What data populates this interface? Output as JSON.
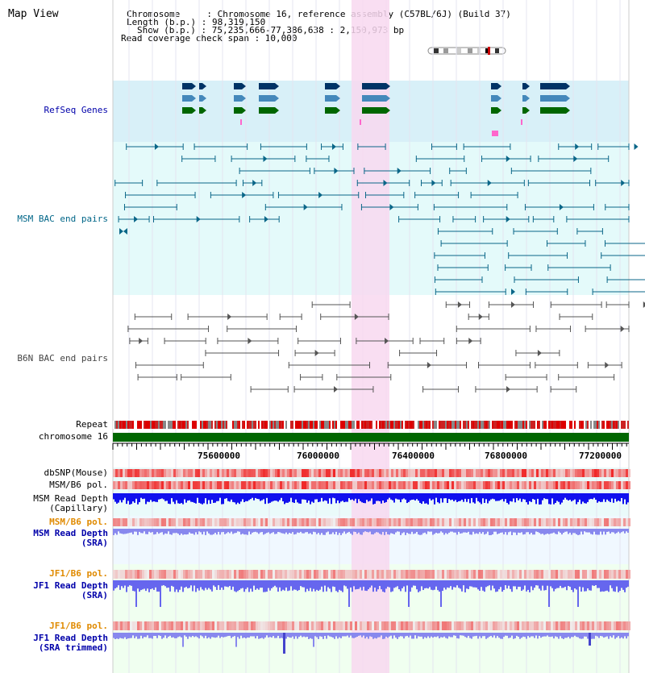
{
  "page": {
    "title": "Map View",
    "info_lines": [
      "Chromosome     : Chromosome 16, reference assembly (C57BL/6J) (Build 37)",
      "Length (b.p.) : 98,319,150",
      "Show (b.p.) : 75,235,666-77,386,638 : 2,150,973 bp",
      "Read coverage check span : 10,000"
    ]
  },
  "tracks": [
    {
      "id": "refseq",
      "label": "RefSeq Genes",
      "color": "#0000aa"
    },
    {
      "id": "msm_bac",
      "label": "MSM BAC end pairs",
      "color": "#006688"
    },
    {
      "id": "b6n_bac",
      "label": "B6N BAC end pairs",
      "color": "#444444"
    },
    {
      "id": "repeat",
      "label": "Repeat",
      "color": "#000000"
    },
    {
      "id": "chrom",
      "label": "chromosome 16",
      "color": "#000000"
    },
    {
      "id": "dbsnp",
      "label": "dbSNP(Mouse)",
      "color": "#000000"
    },
    {
      "id": "msm_b6_pol",
      "label": "MSM/B6 pol.",
      "color": "#000000"
    },
    {
      "id": "msm_depth_cap",
      "label": "MSM Read Depth\n(Capillary)",
      "color": "#000000"
    },
    {
      "id": "msm_b6_pol_sra",
      "label": "MSM/B6 pol.",
      "color": "#e08a00"
    },
    {
      "id": "msm_depth_sra",
      "label": "MSM Read Depth\n(SRA)",
      "color": "#0000aa"
    },
    {
      "id": "jf1_b6_pol",
      "label": "JF1/B6 pol.",
      "color": "#e08a00"
    },
    {
      "id": "jf1_depth_sra",
      "label": "JF1 Read Depth\n(SRA)",
      "color": "#0000aa"
    },
    {
      "id": "jf1_b6_pol_trim",
      "label": "JF1/B6 pol.",
      "color": "#e08a00"
    },
    {
      "id": "jf1_depth_trim",
      "label": "JF1 Read Depth\n(SRA trimmed)",
      "color": "#0000aa"
    }
  ],
  "axis": {
    "ticks": [
      "75600000",
      "76000000",
      "76400000",
      "76800000",
      "77200000"
    ]
  },
  "highlight_color": "#f8d8f0",
  "colors": {
    "refseq_bg": "#d8f0f8",
    "msm_bg": "#e4fafa",
    "chrom_bar": "#006600",
    "gene_dark": "#003366",
    "gene_mid": "#4488bb",
    "gene_green": "#006600",
    "depth_cap": "#1111ee",
    "depth_sra": "#8888ee"
  }
}
